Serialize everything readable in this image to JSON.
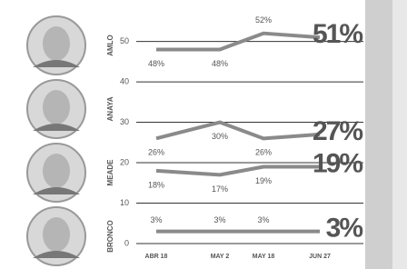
{
  "chart_data": {
    "type": "line",
    "categories": [
      "ABR 18",
      "MAY 2",
      "MAY 18",
      "JUN 27"
    ],
    "series": [
      {
        "name": "AMLO",
        "color": "#8a8a8a",
        "values": [
          48,
          48,
          52,
          51
        ],
        "value_labels": [
          "48%",
          "48%",
          "52%",
          "51%"
        ]
      },
      {
        "name": "ANAYA",
        "color": "#8a8a8a",
        "values": [
          26,
          30,
          26,
          27
        ],
        "value_labels": [
          "26%",
          "30%",
          "26%",
          "27%"
        ]
      },
      {
        "name": "MEADE",
        "color": "#8a8a8a",
        "values": [
          18,
          17,
          19,
          19
        ],
        "value_labels": [
          "18%",
          "17%",
          "19%",
          "19%"
        ]
      },
      {
        "name": "BRONCO",
        "color": "#8a8a8a",
        "values": [
          3,
          3,
          3,
          3
        ],
        "value_labels": [
          "3%",
          "3%",
          "3%",
          "3%"
        ]
      }
    ],
    "ylim": [
      0,
      58
    ],
    "yticks": [
      0,
      10,
      20,
      30,
      40,
      50
    ],
    "grid": true
  }
}
